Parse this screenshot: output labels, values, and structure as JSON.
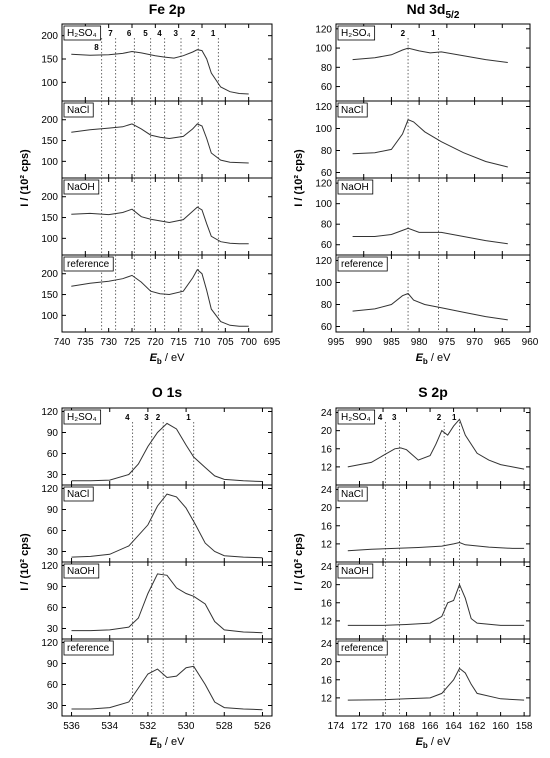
{
  "chart_data": [
    {
      "type": "line",
      "title": "Fe 2p",
      "xlabel_main": "E",
      "xlabel_sub": "b",
      "xlabel_unit": " / eV",
      "ylabel": "I / (10² cps)",
      "x_ticks": [
        740,
        735,
        730,
        725,
        720,
        715,
        710,
        705,
        700,
        695
      ],
      "xlim": [
        740,
        695
      ],
      "peak_positions": [
        {
          "label": "1",
          "x": 706.5
        },
        {
          "label": "2",
          "x": 710.8
        },
        {
          "label": "3",
          "x": 714.5
        },
        {
          "label": "4",
          "x": 718.0
        },
        {
          "label": "5",
          "x": 721.0
        },
        {
          "label": "6",
          "x": 724.5
        },
        {
          "label": "7",
          "x": 728.5
        },
        {
          "label": "8",
          "x": 731.5
        }
      ],
      "panels": [
        {
          "label": "H₂SO₄",
          "ylim": [
            60,
            225
          ],
          "y_ticks": [
            100,
            150,
            200
          ],
          "x": [
            738,
            734,
            730,
            727,
            725,
            723,
            720,
            718,
            716,
            714,
            712,
            711,
            710,
            709,
            708,
            706,
            704,
            702,
            700
          ],
          "y": [
            160,
            158,
            159,
            162,
            166,
            163,
            157,
            154,
            152,
            157,
            165,
            170,
            168,
            150,
            120,
            90,
            80,
            76,
            75
          ]
        },
        {
          "label": "NaCl",
          "ylim": [
            60,
            245
          ],
          "y_ticks": [
            100,
            150,
            200
          ],
          "x": [
            738,
            734,
            730,
            727,
            725,
            723,
            721,
            719,
            717,
            714,
            712,
            711,
            710,
            709,
            708,
            706,
            704,
            702,
            700
          ],
          "y": [
            170,
            176,
            180,
            183,
            190,
            178,
            163,
            158,
            155,
            160,
            178,
            190,
            185,
            155,
            120,
            103,
            98,
            97,
            96
          ]
        },
        {
          "label": "NaOH",
          "ylim": [
            60,
            245
          ],
          "y_ticks": [
            100,
            150,
            200
          ],
          "x": [
            738,
            734,
            730,
            727,
            725,
            723,
            721,
            719,
            717,
            714,
            712,
            711,
            710,
            709,
            708,
            706,
            704,
            702,
            700
          ],
          "y": [
            158,
            160,
            157,
            162,
            170,
            152,
            146,
            142,
            138,
            145,
            165,
            175,
            168,
            135,
            105,
            92,
            88,
            87,
            87
          ]
        },
        {
          "label": "reference",
          "ylim": [
            60,
            245
          ],
          "y_ticks": [
            100,
            150,
            200
          ],
          "x": [
            738,
            734,
            730,
            727,
            725,
            723,
            721,
            719,
            717,
            714,
            712,
            711,
            710,
            709,
            708,
            706,
            704,
            702,
            700
          ],
          "y": [
            170,
            177,
            182,
            188,
            196,
            180,
            158,
            152,
            150,
            158,
            190,
            210,
            200,
            160,
            115,
            85,
            76,
            74,
            74
          ]
        }
      ]
    },
    {
      "type": "line",
      "title": "Nd 3d",
      "title_sub": "5/2",
      "xlabel_main": "E",
      "xlabel_sub": "b",
      "xlabel_unit": " / eV",
      "ylabel": "I / (10² cps)",
      "x_ticks": [
        995,
        990,
        985,
        980,
        975,
        970,
        965,
        960
      ],
      "xlim": [
        995,
        960
      ],
      "peak_positions": [
        {
          "label": "1",
          "x": 976.5
        },
        {
          "label": "2",
          "x": 982.0
        }
      ],
      "panels": [
        {
          "label": "H₂SO₄",
          "ylim": [
            45,
            125
          ],
          "y_ticks": [
            60,
            80,
            100,
            120
          ],
          "x": [
            992,
            988,
            985,
            983,
            982,
            980,
            978,
            976,
            972,
            968,
            964
          ],
          "y": [
            88,
            90,
            93,
            98,
            100,
            97,
            95,
            96,
            92,
            88,
            85
          ]
        },
        {
          "label": "NaCl",
          "ylim": [
            55,
            125
          ],
          "y_ticks": [
            60,
            80,
            100,
            120
          ],
          "x": [
            992,
            988,
            985,
            983,
            982,
            981,
            979,
            976,
            972,
            968,
            964
          ],
          "y": [
            77,
            78,
            81,
            95,
            108,
            106,
            97,
            88,
            78,
            70,
            65
          ]
        },
        {
          "label": "NaOH",
          "ylim": [
            50,
            125
          ],
          "y_ticks": [
            60,
            80,
            100,
            120
          ],
          "x": [
            992,
            988,
            985,
            983,
            982,
            980,
            978,
            976,
            972,
            968,
            964
          ],
          "y": [
            68,
            68,
            70,
            74,
            76,
            72,
            72,
            72,
            68,
            64,
            61
          ]
        },
        {
          "label": "reference",
          "ylim": [
            55,
            125
          ],
          "y_ticks": [
            60,
            80,
            100,
            120
          ],
          "x": [
            992,
            988,
            985,
            983,
            982,
            981,
            979,
            976,
            972,
            968,
            964
          ],
          "y": [
            74,
            76,
            80,
            88,
            90,
            84,
            80,
            77,
            73,
            69,
            66
          ]
        }
      ]
    },
    {
      "type": "line",
      "title": "O 1s",
      "xlabel_main": "E",
      "xlabel_sub": "b",
      "xlabel_unit": " / eV",
      "ylabel": "I / (10² cps)",
      "x_ticks": [
        536,
        534,
        532,
        530,
        528,
        526
      ],
      "xlim": [
        536.5,
        525.5
      ],
      "peak_positions": [
        {
          "label": "1",
          "x": 529.6
        },
        {
          "label": "2",
          "x": 531.2
        },
        {
          "label": "3",
          "x": 531.8
        },
        {
          "label": "4",
          "x": 532.8
        }
      ],
      "panels": [
        {
          "label": "H₂SO₄",
          "ylim": [
            15,
            125
          ],
          "y_ticks": [
            30,
            60,
            90,
            120
          ],
          "x": [
            536,
            535,
            534,
            533,
            532.5,
            532,
            531.5,
            531,
            530.5,
            530,
            529.6,
            529,
            528.5,
            528,
            527,
            526
          ],
          "y": [
            21,
            21,
            22,
            30,
            45,
            70,
            90,
            103,
            95,
            72,
            55,
            40,
            28,
            23,
            21,
            20
          ]
        },
        {
          "label": "NaCl",
          "ylim": [
            15,
            125
          ],
          "y_ticks": [
            30,
            60,
            90,
            120
          ],
          "x": [
            536,
            535,
            534,
            533,
            532,
            531.5,
            531,
            530.5,
            530,
            529.5,
            529,
            528.5,
            528,
            527,
            526
          ],
          "y": [
            22,
            23,
            26,
            38,
            68,
            95,
            112,
            108,
            92,
            68,
            42,
            30,
            24,
            22,
            21
          ]
        },
        {
          "label": "NaOH",
          "ylim": [
            15,
            125
          ],
          "y_ticks": [
            30,
            60,
            90,
            120
          ],
          "x": [
            536,
            535,
            534,
            533,
            532.5,
            532,
            531.5,
            531,
            530.5,
            530,
            529.6,
            529,
            528.5,
            528,
            527,
            526
          ],
          "y": [
            27,
            27,
            28,
            32,
            45,
            80,
            108,
            106,
            88,
            80,
            76,
            65,
            40,
            28,
            25,
            24
          ]
        },
        {
          "label": "reference",
          "ylim": [
            15,
            125
          ],
          "y_ticks": [
            30,
            60,
            90,
            120
          ],
          "x": [
            536,
            535,
            534,
            533,
            532.5,
            532,
            531.5,
            531,
            530.5,
            530,
            529.6,
            529,
            528.5,
            528,
            527,
            526
          ],
          "y": [
            25,
            25,
            27,
            35,
            55,
            75,
            82,
            70,
            72,
            84,
            86,
            60,
            35,
            27,
            25,
            24
          ]
        }
      ]
    },
    {
      "type": "line",
      "title": "S 2p",
      "xlabel_main": "E",
      "xlabel_sub": "b",
      "xlabel_unit": " / eV",
      "ylabel": "I / (10² cps)",
      "x_ticks": [
        174,
        172,
        170,
        168,
        166,
        164,
        162,
        160,
        158
      ],
      "xlim": [
        174,
        157.5
      ],
      "peak_positions": [
        {
          "label": "1",
          "x": 163.5
        },
        {
          "label": "2",
          "x": 164.8
        },
        {
          "label": "3",
          "x": 168.6
        },
        {
          "label": "4",
          "x": 169.8
        }
      ],
      "panels": [
        {
          "label": "H₂SO₄",
          "ylim": [
            8,
            25
          ],
          "y_ticks": [
            12,
            16,
            20,
            24
          ],
          "x": [
            173,
            171,
            170,
            169,
            168.5,
            168,
            167,
            166,
            165.5,
            165,
            164.5,
            164,
            163.5,
            163,
            162,
            161,
            160,
            159,
            158
          ],
          "y": [
            12,
            13,
            14.5,
            16,
            16.2,
            15.8,
            13.5,
            14.5,
            17,
            20,
            19,
            21,
            22.5,
            19,
            15,
            13.5,
            12.5,
            12,
            11.5
          ]
        },
        {
          "label": "NaCl",
          "ylim": [
            8,
            25
          ],
          "y_ticks": [
            12,
            16,
            20,
            24
          ],
          "x": [
            173,
            171,
            169,
            167,
            165,
            164,
            163.5,
            163,
            161,
            159,
            158
          ],
          "y": [
            10.5,
            10.8,
            11,
            11.2,
            11.5,
            12,
            12.3,
            11.8,
            11.3,
            11,
            11
          ]
        },
        {
          "label": "NaOH",
          "ylim": [
            8,
            25
          ],
          "y_ticks": [
            12,
            16,
            20,
            24
          ],
          "x": [
            173,
            170,
            168,
            166,
            165,
            164.5,
            164,
            163.5,
            163,
            162.5,
            162,
            160,
            158
          ],
          "y": [
            11,
            11,
            11.2,
            11.5,
            13,
            16,
            16.5,
            20,
            17,
            12.5,
            11.5,
            11,
            11
          ]
        },
        {
          "label": "reference",
          "ylim": [
            8,
            25
          ],
          "y_ticks": [
            12,
            16,
            20,
            24
          ],
          "x": [
            173,
            170,
            168,
            166,
            165,
            164.5,
            164,
            163.5,
            163,
            162.5,
            162,
            160,
            158
          ],
          "y": [
            11.5,
            11.6,
            11.8,
            12,
            13,
            14.5,
            16,
            18.5,
            17.5,
            15,
            13,
            11.8,
            11.5
          ]
        }
      ]
    }
  ]
}
